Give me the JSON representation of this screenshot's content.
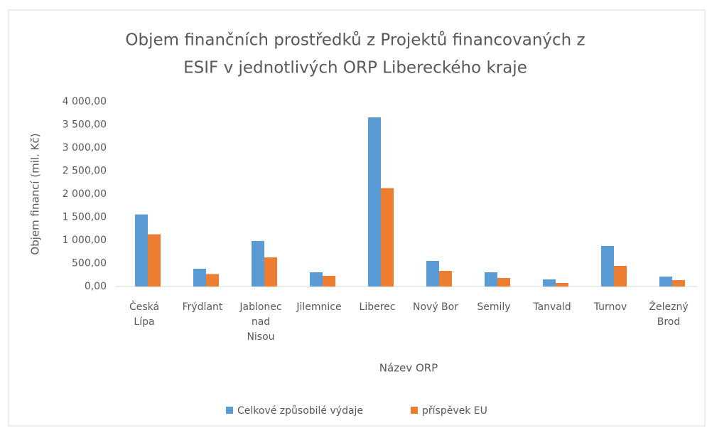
{
  "chart_data": {
    "type": "bar",
    "title": "Objem finančních prostředků z Projektů financovaných z ESIF v jednotlivých ORP Libereckého kraje",
    "title_lines": [
      "Objem finančních prostředků z Projektů financovaných z",
      "ESIF v jednotlivých ORP Libereckého kraje"
    ],
    "xlabel": "Název ORP",
    "ylabel": "Objem financí (mil. Kč)",
    "categories": [
      "Česká Lípa",
      "Frýdlant",
      "Jablonec nad Nisou",
      "Jilemnice",
      "Liberec",
      "Nový Bor",
      "Semily",
      "Tanvald",
      "Turnov",
      "Železný Brod"
    ],
    "series": [
      {
        "name": "Celkové způsobilé výdaje",
        "color": "#5b9bd5",
        "values": [
          1560,
          385,
          985,
          308,
          3660,
          554,
          308,
          154,
          877,
          215
        ]
      },
      {
        "name": "příspěvek EU",
        "color": "#ed7d31",
        "values": [
          1130,
          270,
          630,
          231,
          2130,
          338,
          185,
          77,
          446,
          138
        ]
      }
    ],
    "ylim": [
      0,
      4000
    ],
    "yticks": [
      {
        "value": 0,
        "label": "0,00"
      },
      {
        "value": 500,
        "label": "500,00"
      },
      {
        "value": 1000,
        "label": "1 000,00"
      },
      {
        "value": 1500,
        "label": "1 500,00"
      },
      {
        "value": 2000,
        "label": "2 000,00"
      },
      {
        "value": 2500,
        "label": "2 500,00"
      },
      {
        "value": 3000,
        "label": "3 000,00"
      },
      {
        "value": 3500,
        "label": "3 500,00"
      },
      {
        "value": 4000,
        "label": "4 000,00"
      }
    ],
    "grid": false,
    "legend": "bottom"
  }
}
